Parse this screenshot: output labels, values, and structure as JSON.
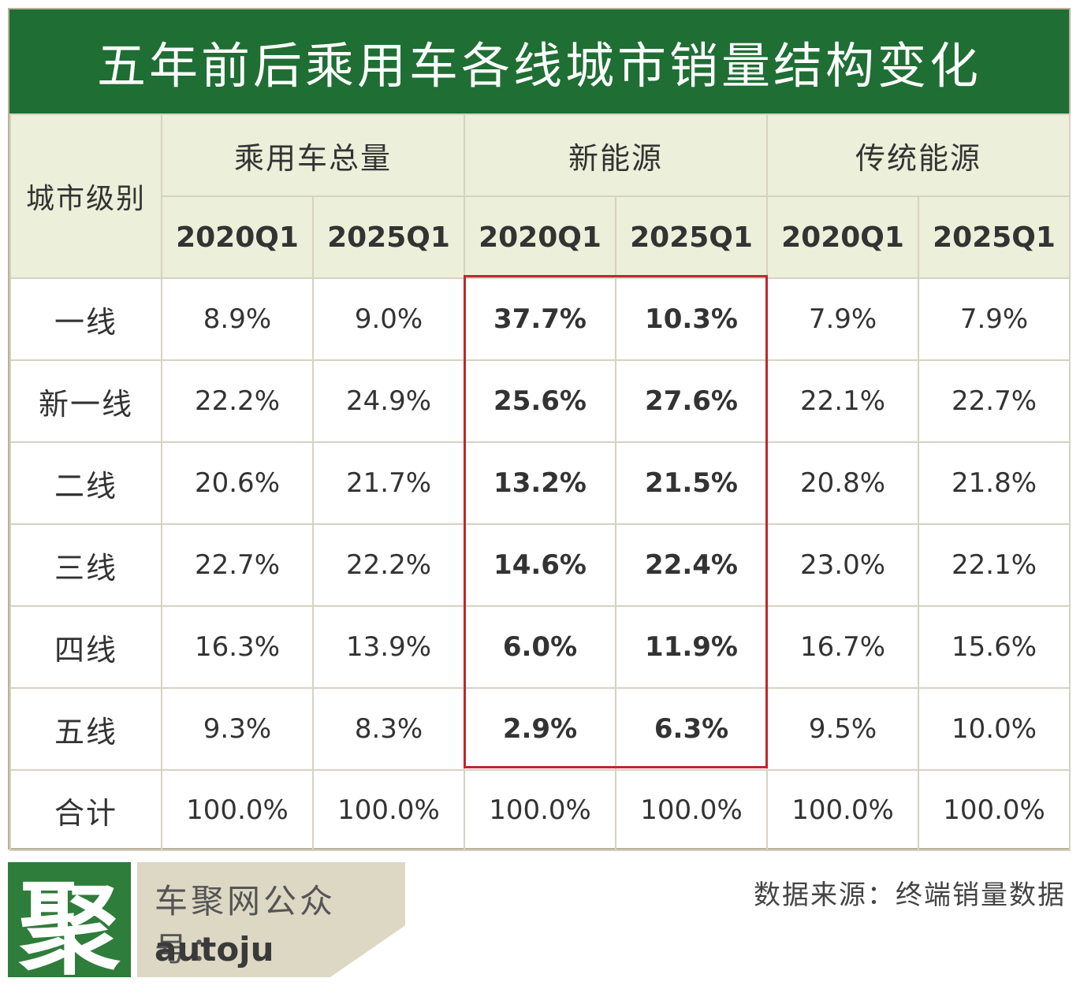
{
  "title": "五年前后乘用车各线城市销量结构变化",
  "header": {
    "city_level": "城市级别",
    "groups": [
      "乘用车总量",
      "新能源",
      "传统能源"
    ],
    "periods": [
      "2020Q1",
      "2025Q1",
      "2020Q1",
      "2025Q1",
      "2020Q1",
      "2025Q1"
    ]
  },
  "rows": [
    {
      "label": "一线",
      "values": [
        "8.9%",
        "9.0%",
        "37.7%",
        "10.3%",
        "7.9%",
        "7.9%"
      ]
    },
    {
      "label": "新一线",
      "values": [
        "22.2%",
        "24.9%",
        "25.6%",
        "27.6%",
        "22.1%",
        "22.7%"
      ]
    },
    {
      "label": "二线",
      "values": [
        "20.6%",
        "21.7%",
        "13.2%",
        "21.5%",
        "20.8%",
        "21.8%"
      ]
    },
    {
      "label": "三线",
      "values": [
        "22.7%",
        "22.2%",
        "14.6%",
        "22.4%",
        "23.0%",
        "22.1%"
      ]
    },
    {
      "label": "四线",
      "values": [
        "16.3%",
        "13.9%",
        "6.0%",
        "11.9%",
        "16.7%",
        "15.6%"
      ]
    },
    {
      "label": "五线",
      "values": [
        "9.3%",
        "8.3%",
        "2.9%",
        "6.3%",
        "9.5%",
        "10.0%"
      ]
    },
    {
      "label": "合计",
      "values": [
        "100.0%",
        "100.0%",
        "100.0%",
        "100.0%",
        "100.0%",
        "100.0%"
      ]
    }
  ],
  "footer": {
    "logo_char": "聚",
    "brand_line1": "车聚网公众号：",
    "brand_line2": "autoju",
    "source": "数据来源：终端销量数据"
  },
  "colors": {
    "title_bg": "#1f6e34",
    "header_bg": "#ecefd9",
    "highlight_border": "#c0262d",
    "logo_bg": "#2e7d3a"
  }
}
